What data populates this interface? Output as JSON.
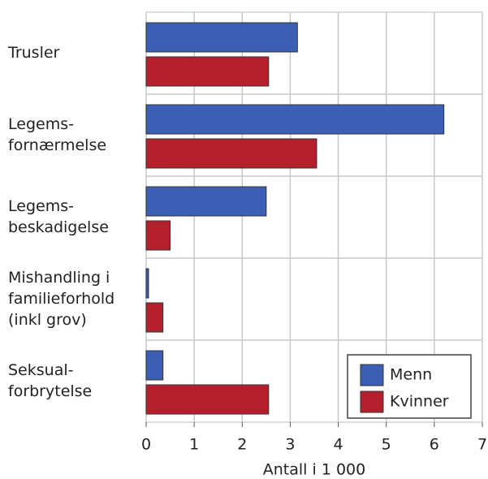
{
  "chart_data": {
    "type": "barh",
    "categories": [
      [
        "Trusler"
      ],
      [
        "Legems-",
        "fornærmelse"
      ],
      [
        "Legems-",
        "beskadigelse"
      ],
      [
        "Mishandling i",
        "familieforhold",
        "(inkl grov)"
      ],
      [
        "Seksual-",
        "forbrytelse"
      ]
    ],
    "series": [
      {
        "name": "Menn",
        "color": "#3a5fb4",
        "values": [
          3.15,
          6.2,
          2.5,
          0.05,
          0.35
        ]
      },
      {
        "name": "Kvinner",
        "color": "#b3202c",
        "values": [
          2.55,
          3.55,
          0.5,
          0.35,
          2.55
        ]
      }
    ],
    "xlabel": "Antall i 1 000",
    "xlim": [
      0,
      7
    ],
    "xticks": [
      0,
      1,
      2,
      3,
      4,
      5,
      6,
      7
    ],
    "grid": true,
    "legend": "lower right"
  }
}
